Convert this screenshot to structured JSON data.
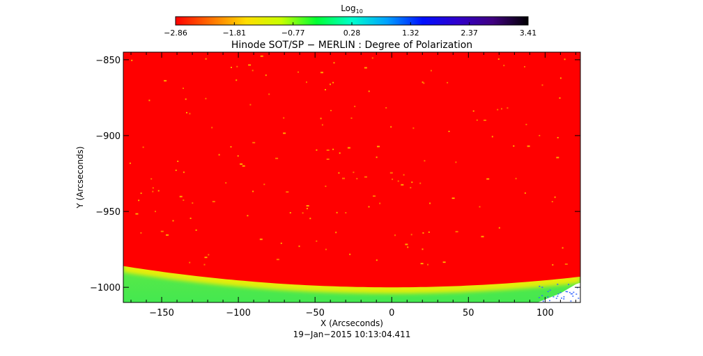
{
  "colorbar": {
    "title_main": "Log",
    "title_sub": "10",
    "ticks": [
      "−2.86",
      "−1.81",
      "−0.77",
      "0.28",
      "1.32",
      "2.37",
      "3.41"
    ],
    "colormap": [
      "#ff0000",
      "#ff7000",
      "#ffdd00",
      "#c8ff00",
      "#00ff33",
      "#00ffcc",
      "#00a0ff",
      "#0010ff",
      "#3000cc",
      "#400080",
      "#000000"
    ]
  },
  "chart_data": {
    "type": "heatmap",
    "title": "Hinode SOT/SP − MERLIN : Degree of Polarization",
    "xlabel": "X (Arcseconds)",
    "ylabel": "Y (Arcseconds)",
    "xlim": [
      -175,
      123
    ],
    "ylim": [
      -1010,
      -845
    ],
    "x_ticks": [
      -150,
      -100,
      -50,
      0,
      50,
      100
    ],
    "x_tick_labels": [
      "−150",
      "−100",
      "−50",
      "0",
      "50",
      "100"
    ],
    "y_ticks": [
      -850,
      -900,
      -950,
      -1000
    ],
    "y_tick_labels": [
      "−850",
      "−900",
      "−950",
      "−1000"
    ],
    "colorbar_range": [
      -2.86,
      3.41
    ],
    "limb": {
      "y_at_x0": -1000,
      "y_at_x_min": -986,
      "y_at_x_max": -993
    },
    "colors": {
      "disk": "#ff0000",
      "limb_band": "#ffee00",
      "off_limb": "#44ee44",
      "point": "#ffaa00"
    },
    "subtitle": "19−Jan−2015 10:13:04.411"
  }
}
